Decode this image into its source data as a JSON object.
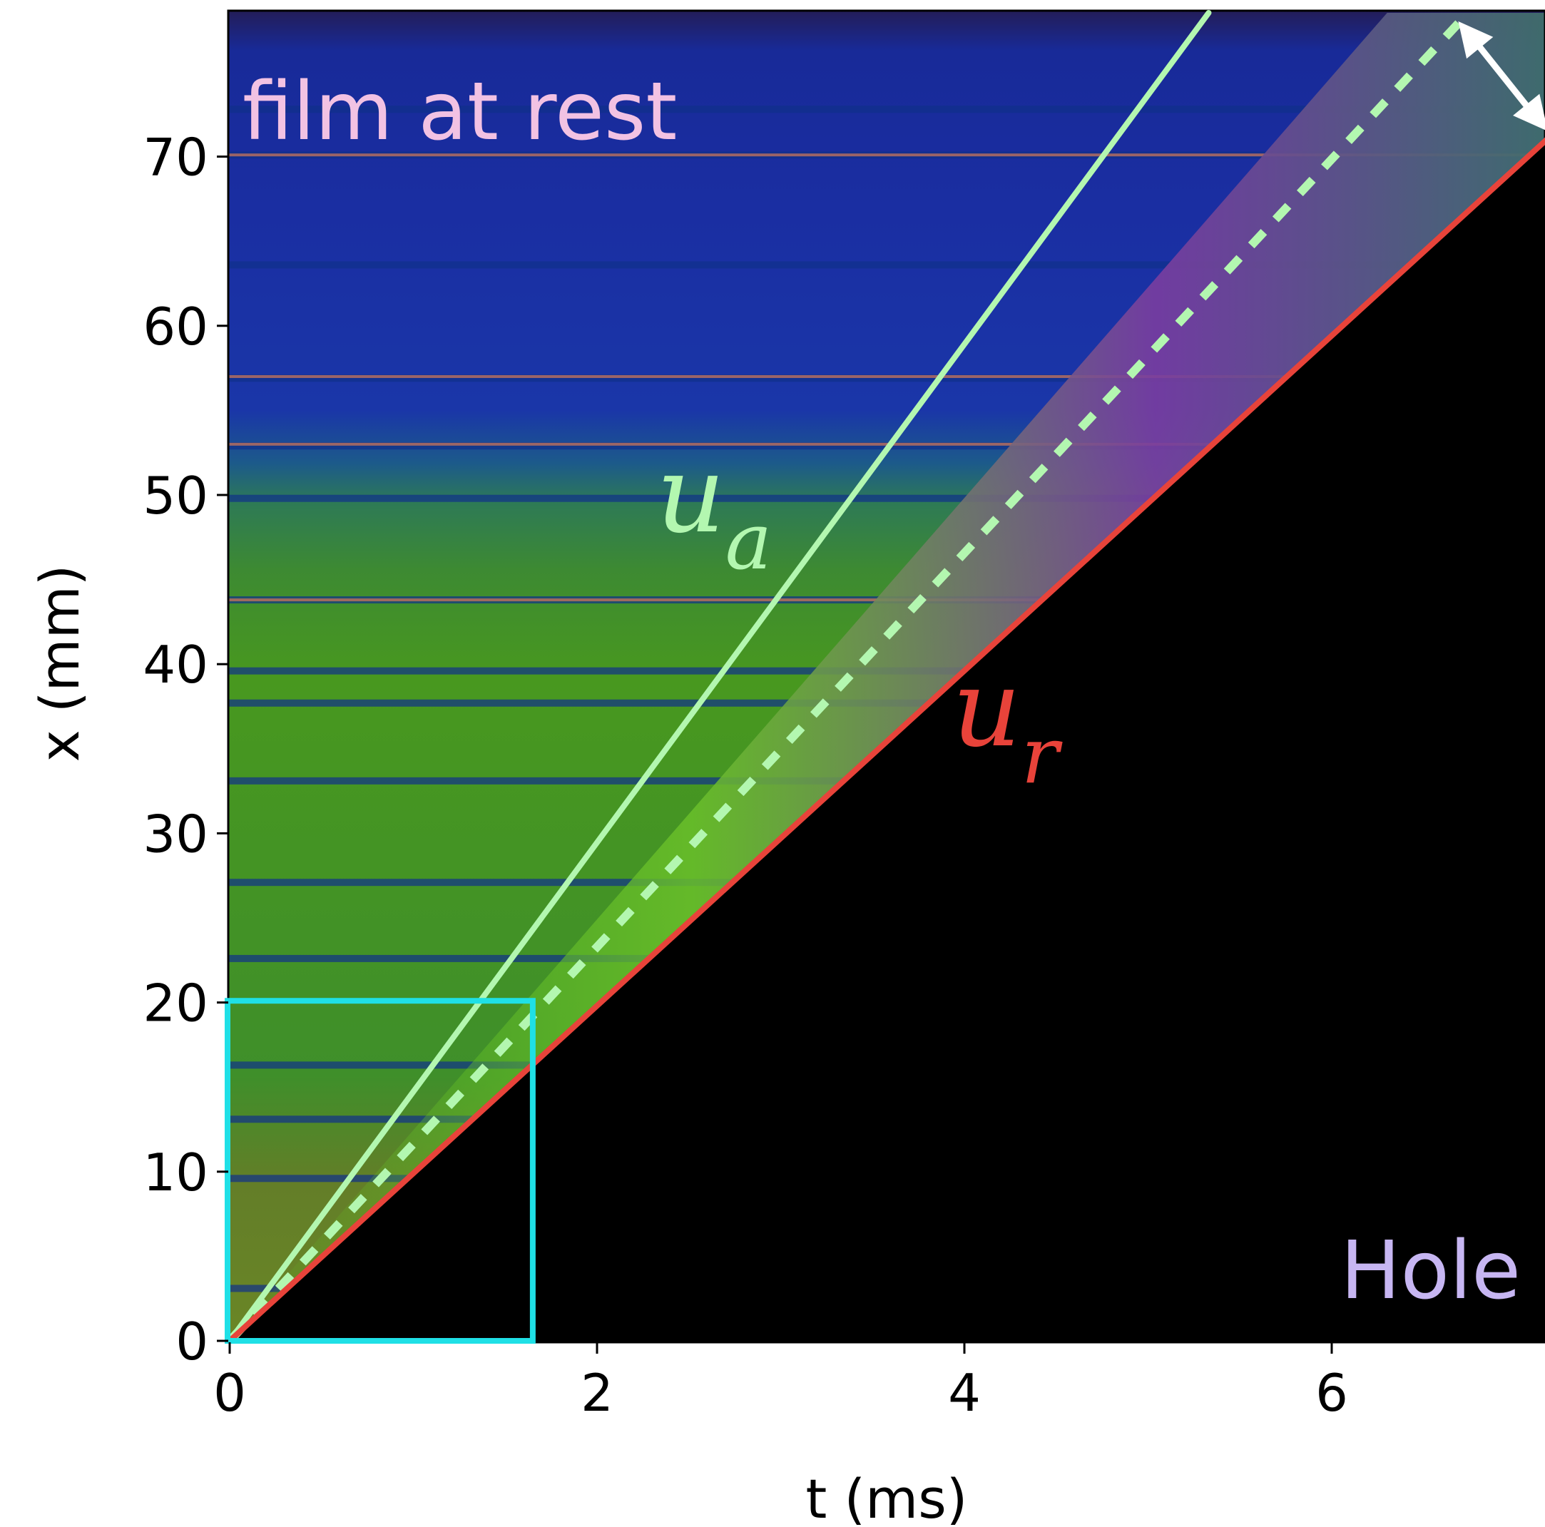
{
  "chart_data": {
    "type": "heatmap",
    "title": "",
    "xlabel": "t (ms)",
    "ylabel": "x (mm)",
    "xlim": [
      0,
      7.2
    ],
    "ylim": [
      0,
      78.5
    ],
    "xticks": [
      0,
      2,
      4,
      6
    ],
    "yticks": [
      0,
      10,
      20,
      30,
      40,
      50,
      60,
      70
    ],
    "grid": false,
    "legend": "none",
    "colors": {
      "film_rest": "#1a2aa0",
      "film_green": "#4f9a28",
      "hole": "#000000",
      "u_a_line": "#b3f7b0",
      "u_r_line": "#e8433a",
      "zoom_box": "#1fe0e6",
      "arrow": "#ffffff",
      "film_label": "#f2c2e3",
      "hole_label": "#c7b6f2"
    },
    "series": [
      {
        "name": "u_a",
        "style": "solid",
        "x": [
          0,
          5.33
        ],
        "y": [
          0,
          78.5
        ]
      },
      {
        "name": "u_r",
        "style": "solid",
        "x": [
          0,
          7.2
        ],
        "y": [
          0,
          71.3
        ]
      },
      {
        "name": "",
        "style": "dashed",
        "x": [
          0,
          6.7
        ],
        "y": [
          0,
          78
        ]
      }
    ],
    "annotations": {
      "film_label": "film at rest",
      "hole_label": "Hole",
      "u_a_symbol": "u",
      "u_a_subscript": "a",
      "u_r_symbol": "u",
      "u_r_subscript": "r"
    },
    "zoom_box": {
      "x": [
        0,
        1.65
      ],
      "y": [
        0,
        20.1
      ]
    },
    "double_arrow": {
      "from": [
        6.65,
        78
      ],
      "to": [
        7.2,
        71.5
      ]
    },
    "dark_bands_y": [
      3.1,
      9.6,
      13.1,
      16.3,
      22.6,
      27.1,
      33.1,
      37.7,
      39.6,
      43.8,
      49.8,
      52.9,
      56.9,
      63.6,
      70.1,
      72.8
    ],
    "bright_bands_y": [
      53.0,
      57.0,
      43.8,
      70.1
    ]
  }
}
